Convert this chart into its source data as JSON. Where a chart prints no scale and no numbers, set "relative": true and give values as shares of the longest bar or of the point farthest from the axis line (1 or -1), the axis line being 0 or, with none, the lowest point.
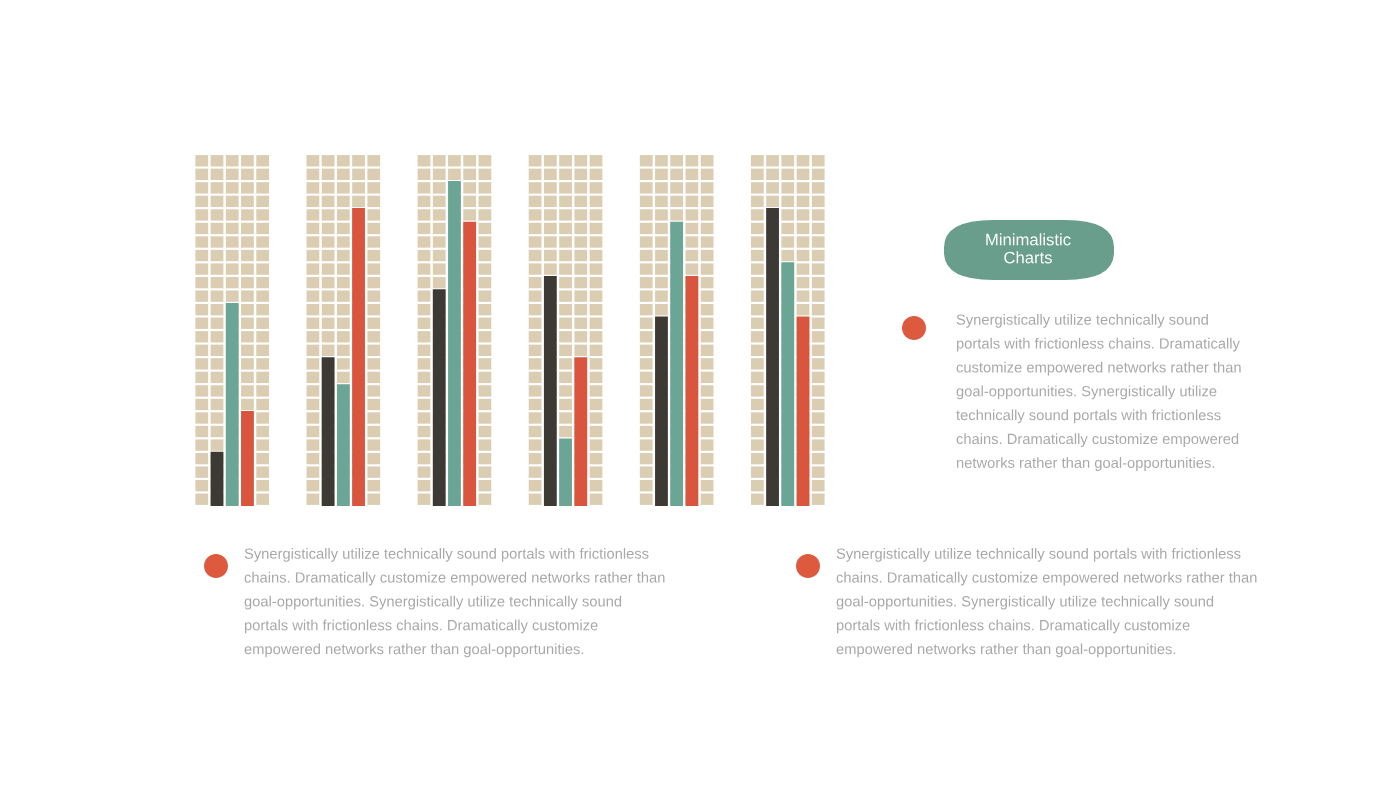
{
  "chart_data": {
    "type": "bar",
    "title": "Minimalistic Charts",
    "relative": true,
    "categories": [
      null,
      null,
      null,
      null,
      null,
      null
    ],
    "series": [
      {
        "color": "#3d3a36",
        "values": [
          0.167,
          0.458,
          0.667,
          0.708,
          0.583,
          0.917
        ]
      },
      {
        "color": "#6aa595",
        "values": [
          0.625,
          0.375,
          1,
          0.208,
          0.875,
          0.75
        ]
      },
      {
        "color": "#d9553e",
        "values": [
          0.292,
          0.917,
          0.875,
          0.458,
          0.708,
          0.583
        ]
      }
    ],
    "annotations": [
      "Synergistically utilize technically sound\nportals with frictionless chains. Dramatically\ncustomize empowered networks rather than\ngoal-opportunities. Synergistically utilize\ntechnically sound portals with frictionless\nchains. Dramatically customize empowered\nnetworks rather than goal-opportunities.",
      "Synergistically utilize technically sound portals with frictionless\nchains. Dramatically customize empowered networks rather than\ngoal-opportunities. Synergistically utilize technically sound\nportals with frictionless chains. Dramatically customize\nempowered networks rather than goal-opportunities.",
      "Synergistically utilize technically sound portals with frictionless\nchains. Dramatically customize empowered networks rather than\ngoal-opportunities. Synergistically utilize technically sound\nportals with frictionless chains. Dramatically customize\nempowered networks rather than goal-opportunities."
    ],
    "grid": false
  }
}
